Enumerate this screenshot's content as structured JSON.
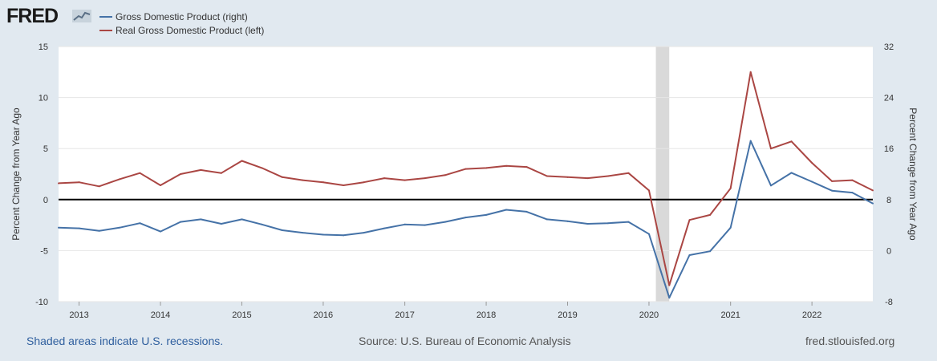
{
  "brand": {
    "logo_text": "FRED"
  },
  "colors": {
    "gdp": "#4572a7",
    "real_gdp": "#aa4643",
    "recession": "#d9d9d9",
    "zero_line": "#000000",
    "grid": "#e6e6e6"
  },
  "footer": {
    "note": "Shaded areas indicate U.S. recessions.",
    "source": "Source: U.S. Bureau of Economic Analysis",
    "site": "fred.stlouisfed.org"
  },
  "chart_data": {
    "type": "line",
    "title": "",
    "ylabel_left": "Percent Change from Year Ago",
    "ylabel_right": "Percent Change from Year Ago",
    "ylim_left": [
      -10,
      15
    ],
    "ylim_right": [
      -8,
      32
    ],
    "yticks_left": [
      -10,
      -5,
      0,
      5,
      10,
      15
    ],
    "yticks_right": [
      -8,
      0,
      8,
      16,
      24,
      32
    ],
    "x_range": [
      "2012-10-01",
      "2022-10-01"
    ],
    "x_tick_labels": [
      "2013",
      "2014",
      "2015",
      "2016",
      "2017",
      "2018",
      "2019",
      "2020",
      "2021",
      "2022"
    ],
    "grid": true,
    "legend_position": "top-left",
    "recession": {
      "start": "2020-02-01",
      "end": "2020-04-01"
    },
    "x": [
      "2012-10-01",
      "2013-01-01",
      "2013-04-01",
      "2013-07-01",
      "2013-10-01",
      "2014-01-01",
      "2014-04-01",
      "2014-07-01",
      "2014-10-01",
      "2015-01-01",
      "2015-04-01",
      "2015-07-01",
      "2015-10-01",
      "2016-01-01",
      "2016-04-01",
      "2016-07-01",
      "2016-10-01",
      "2017-01-01",
      "2017-04-01",
      "2017-07-01",
      "2017-10-01",
      "2018-01-01",
      "2018-04-01",
      "2018-07-01",
      "2018-10-01",
      "2019-01-01",
      "2019-04-01",
      "2019-07-01",
      "2019-10-01",
      "2020-01-01",
      "2020-04-01",
      "2020-07-01",
      "2020-10-01",
      "2021-01-01",
      "2021-04-01",
      "2021-07-01",
      "2021-10-01",
      "2022-01-01",
      "2022-04-01",
      "2022-07-01",
      "2022-10-01"
    ],
    "series": [
      {
        "name": "Gross Domestic Product (right)",
        "axis": "right",
        "color": "#4572a7",
        "values": [
          3.6,
          3.5,
          3.1,
          3.6,
          4.3,
          3.0,
          4.5,
          4.9,
          4.2,
          4.9,
          4.1,
          3.2,
          2.8,
          2.5,
          2.4,
          2.8,
          3.5,
          4.1,
          4.0,
          4.5,
          5.2,
          5.6,
          6.4,
          6.1,
          4.9,
          4.6,
          4.2,
          4.3,
          4.5,
          2.6,
          -7.4,
          -0.7,
          -0.1,
          3.6,
          17.2,
          10.2,
          12.2,
          10.8,
          9.4,
          9.1,
          7.4
        ]
      },
      {
        "name": "Real Gross Domestic Product (left)",
        "axis": "left",
        "color": "#aa4643",
        "values": [
          1.6,
          1.7,
          1.3,
          2.0,
          2.6,
          1.4,
          2.5,
          2.9,
          2.6,
          3.8,
          3.1,
          2.2,
          1.9,
          1.7,
          1.4,
          1.7,
          2.1,
          1.9,
          2.1,
          2.4,
          3.0,
          3.1,
          3.3,
          3.2,
          2.3,
          2.2,
          2.1,
          2.3,
          2.6,
          0.9,
          -8.4,
          -2.0,
          -1.5,
          1.1,
          12.5,
          5.0,
          5.7,
          3.6,
          1.8,
          1.9,
          0.9
        ]
      }
    ]
  }
}
